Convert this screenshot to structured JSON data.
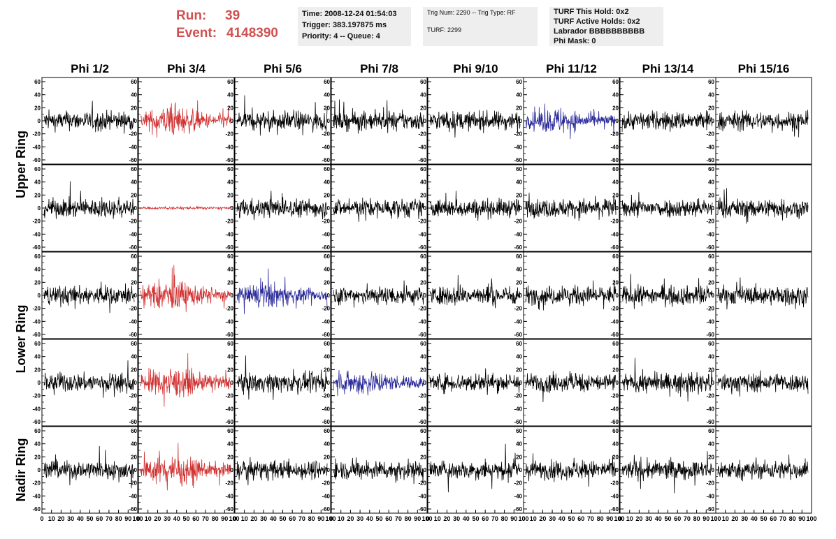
{
  "header": {
    "run_label": "Run:",
    "run_value": "39",
    "event_label": "Event:",
    "event_value": "4148390"
  },
  "info_boxes": [
    {
      "lines": [
        "Time: 2008-12-24 01:54:03",
        "Trigger: 383.197875 ms",
        "Priority: 4 -- Queue: 4"
      ]
    },
    {
      "lines": [
        "Trig Num: 2290 -- Trig Type: RF",
        "TURF: 2299"
      ]
    },
    {
      "lines": [
        "TURF This Hold: 0x2",
        "TURF Active Holds: 0x2",
        "Labrador BBBBBBBBBB",
        "Phi Mask: 0"
      ]
    }
  ],
  "colors": {
    "trace_default": "#000000",
    "trace_red": "#d03030",
    "trace_blue": "#2a2a9a",
    "header_text": "#d05050",
    "info_bg": "#eeeeee"
  },
  "chart_data": {
    "type": "line",
    "columns": [
      "Phi 1/2",
      "Phi 3/4",
      "Phi 5/6",
      "Phi 7/8",
      "Phi 9/10",
      "Phi 11/12",
      "Phi 13/14",
      "Phi 15/16"
    ],
    "row_groups": [
      {
        "label": "Upper Ring",
        "rows": 2
      },
      {
        "label": "Lower Ring",
        "rows": 2
      },
      {
        "label": "Nadir Ring",
        "rows": 1
      }
    ],
    "ylim": [
      -60,
      60
    ],
    "xlim": [
      0,
      100
    ],
    "y_ticks": [
      "-60",
      "-40",
      "-20",
      "0",
      "20",
      "40",
      "60"
    ],
    "x_ticks": [
      "0",
      "10",
      "20",
      "30",
      "40",
      "50",
      "60",
      "70",
      "80",
      "90",
      "100"
    ],
    "grid": false,
    "panels": [
      [
        "black",
        "red",
        "black",
        "black",
        "black",
        "blue",
        "black",
        "black"
      ],
      [
        "black",
        "red_flat",
        "black",
        "black",
        "black",
        "black",
        "black",
        "black"
      ],
      [
        "black",
        "red",
        "blue",
        "black",
        "black",
        "black",
        "black",
        "black"
      ],
      [
        "black",
        "red",
        "black",
        "blue",
        "black",
        "black",
        "black",
        "black"
      ],
      [
        "black",
        "red",
        "black",
        "black",
        "black",
        "black",
        "black",
        "black"
      ]
    ],
    "trace_amplitude_approx": {
      "black": 22,
      "red": 30,
      "red_flat": 3,
      "blue": 25
    }
  }
}
